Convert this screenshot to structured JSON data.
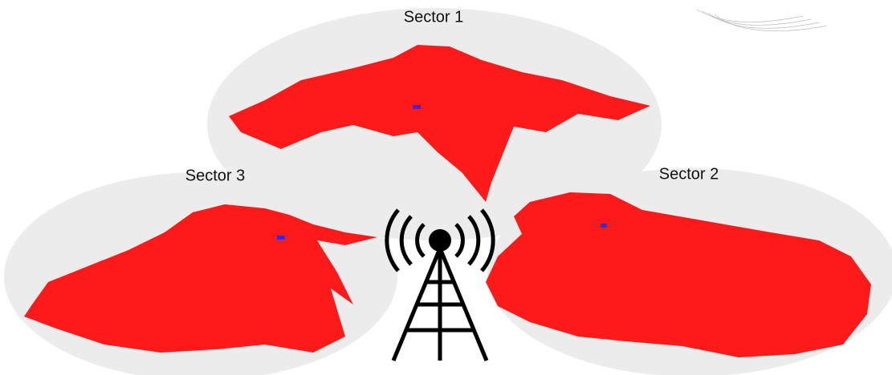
{
  "sectors": [
    {
      "label": "Sector 1"
    },
    {
      "label": "Sector 2"
    },
    {
      "label": "Sector 3"
    }
  ]
}
